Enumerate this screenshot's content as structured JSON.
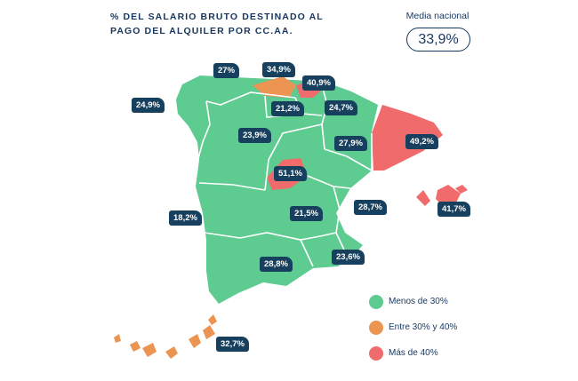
{
  "title": "% DEL SALARIO BRUTO DESTINADO AL PAGO DEL ALQUILER POR CC.AA.",
  "national": {
    "label": "Media nacional",
    "value": "33,9%"
  },
  "colors": {
    "green": "#5ecb91",
    "orange": "#ec9452",
    "red": "#f06c6c",
    "navy": "#17405e"
  },
  "regions": {
    "galicia": "24,9%",
    "asturias": "27%",
    "cantabria": "34,9%",
    "pais_vasco": "40,9%",
    "navarra": "24,7%",
    "la_rioja": "21,2%",
    "castilla_leon": "23,9%",
    "aragon": "27,9%",
    "cataluna": "49,2%",
    "madrid": "51,1%",
    "extremadura": "18,2%",
    "castilla_la_mancha": "21,5%",
    "valencia": "28,7%",
    "baleares": "41,7%",
    "murcia": "23,6%",
    "andalucia": "28,8%",
    "canarias": "32,7%"
  },
  "legend": [
    {
      "label": "Menos de 30%",
      "color": "#5ecb91"
    },
    {
      "label": "Entre 30% y 40%",
      "color": "#ec9452"
    },
    {
      "label": "Más de 40%",
      "color": "#f06c6c"
    }
  ]
}
